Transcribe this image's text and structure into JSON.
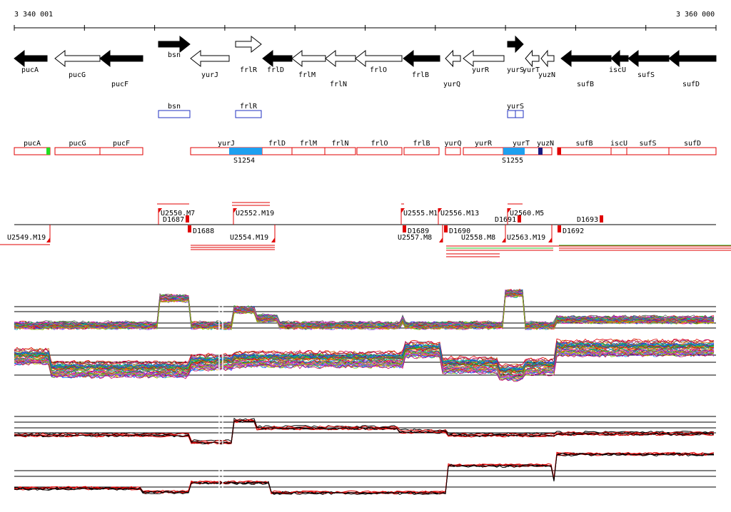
{
  "ruler": {
    "start_label": "3 340 001",
    "end_label": "3 360 000"
  },
  "colors": {
    "gene_fill": "#000000",
    "gene_outline": "#000000",
    "transcript_outline": "#e00000",
    "blue_box": "#2030c0",
    "segment_blue": "#1ea0f0",
    "segment_green": "#20e020",
    "segment_navy": "#1a1a80",
    "marker_red": "#e00000"
  },
  "genes": [
    {
      "name": "pucA",
      "strand": "-",
      "fill": true
    },
    {
      "name": "pucG",
      "strand": "-",
      "fill": false
    },
    {
      "name": "pucF",
      "strand": "-",
      "fill": true
    },
    {
      "name": "bsn",
      "strand": "+",
      "fill": true
    },
    {
      "name": "yurJ",
      "strand": "-",
      "fill": false
    },
    {
      "name": "frlR",
      "strand": "+",
      "fill": false
    },
    {
      "name": "frlD",
      "strand": "-",
      "fill": true
    },
    {
      "name": "frlM",
      "strand": "-",
      "fill": false
    },
    {
      "name": "frlN",
      "strand": "-",
      "fill": false
    },
    {
      "name": "frlO",
      "strand": "-",
      "fill": false
    },
    {
      "name": "frlB",
      "strand": "-",
      "fill": true
    },
    {
      "name": "yurQ",
      "strand": "-",
      "fill": false
    },
    {
      "name": "yurR",
      "strand": "-",
      "fill": false
    },
    {
      "name": "yurS",
      "strand": "+",
      "fill": true
    },
    {
      "name": "yurT",
      "strand": "-",
      "fill": false
    },
    {
      "name": "yuzN",
      "strand": "-",
      "fill": false
    },
    {
      "name": "sufB",
      "strand": "-",
      "fill": true
    },
    {
      "name": "iscU",
      "strand": "-",
      "fill": true
    },
    {
      "name": "sufS",
      "strand": "-",
      "fill": true
    },
    {
      "name": "sufD",
      "strand": "-",
      "fill": true
    }
  ],
  "blue_boxes": [
    {
      "name": "bsn"
    },
    {
      "name": "frlR"
    },
    {
      "name": "yurS"
    }
  ],
  "transcripts": [
    {
      "name": "pucA"
    },
    {
      "name": "pucG"
    },
    {
      "name": "pucF"
    },
    {
      "name": "yurJ"
    },
    {
      "name": "frlD"
    },
    {
      "name": "frlM"
    },
    {
      "name": "frlN"
    },
    {
      "name": "frlO"
    },
    {
      "name": "frlB"
    },
    {
      "name": "yurQ"
    },
    {
      "name": "yurR"
    },
    {
      "name": "yurT"
    },
    {
      "name": "yuzN"
    },
    {
      "name": "sufB"
    },
    {
      "name": "iscU"
    },
    {
      "name": "sufS"
    },
    {
      "name": "sufD"
    }
  ],
  "segments": [
    {
      "name": "S1254"
    },
    {
      "name": "S1255"
    }
  ],
  "upshifts": [
    {
      "name": "U2550.M7"
    },
    {
      "name": "U2552.M19"
    },
    {
      "name": "U2555.M1"
    },
    {
      "name": "U2556.M13"
    },
    {
      "name": "U2560.M5"
    }
  ],
  "downshifts": [
    {
      "name": "U2549.M19"
    },
    {
      "name": "U2554.M19"
    },
    {
      "name": "U2557.M8"
    },
    {
      "name": "U2558.M8"
    },
    {
      "name": "U2563.M19"
    }
  ],
  "d_markers": [
    {
      "name": "D1687"
    },
    {
      "name": "D1688"
    },
    {
      "name": "D1689"
    },
    {
      "name": "D1690"
    },
    {
      "name": "D1691"
    },
    {
      "name": "D1692"
    },
    {
      "name": "D1693"
    }
  ]
}
